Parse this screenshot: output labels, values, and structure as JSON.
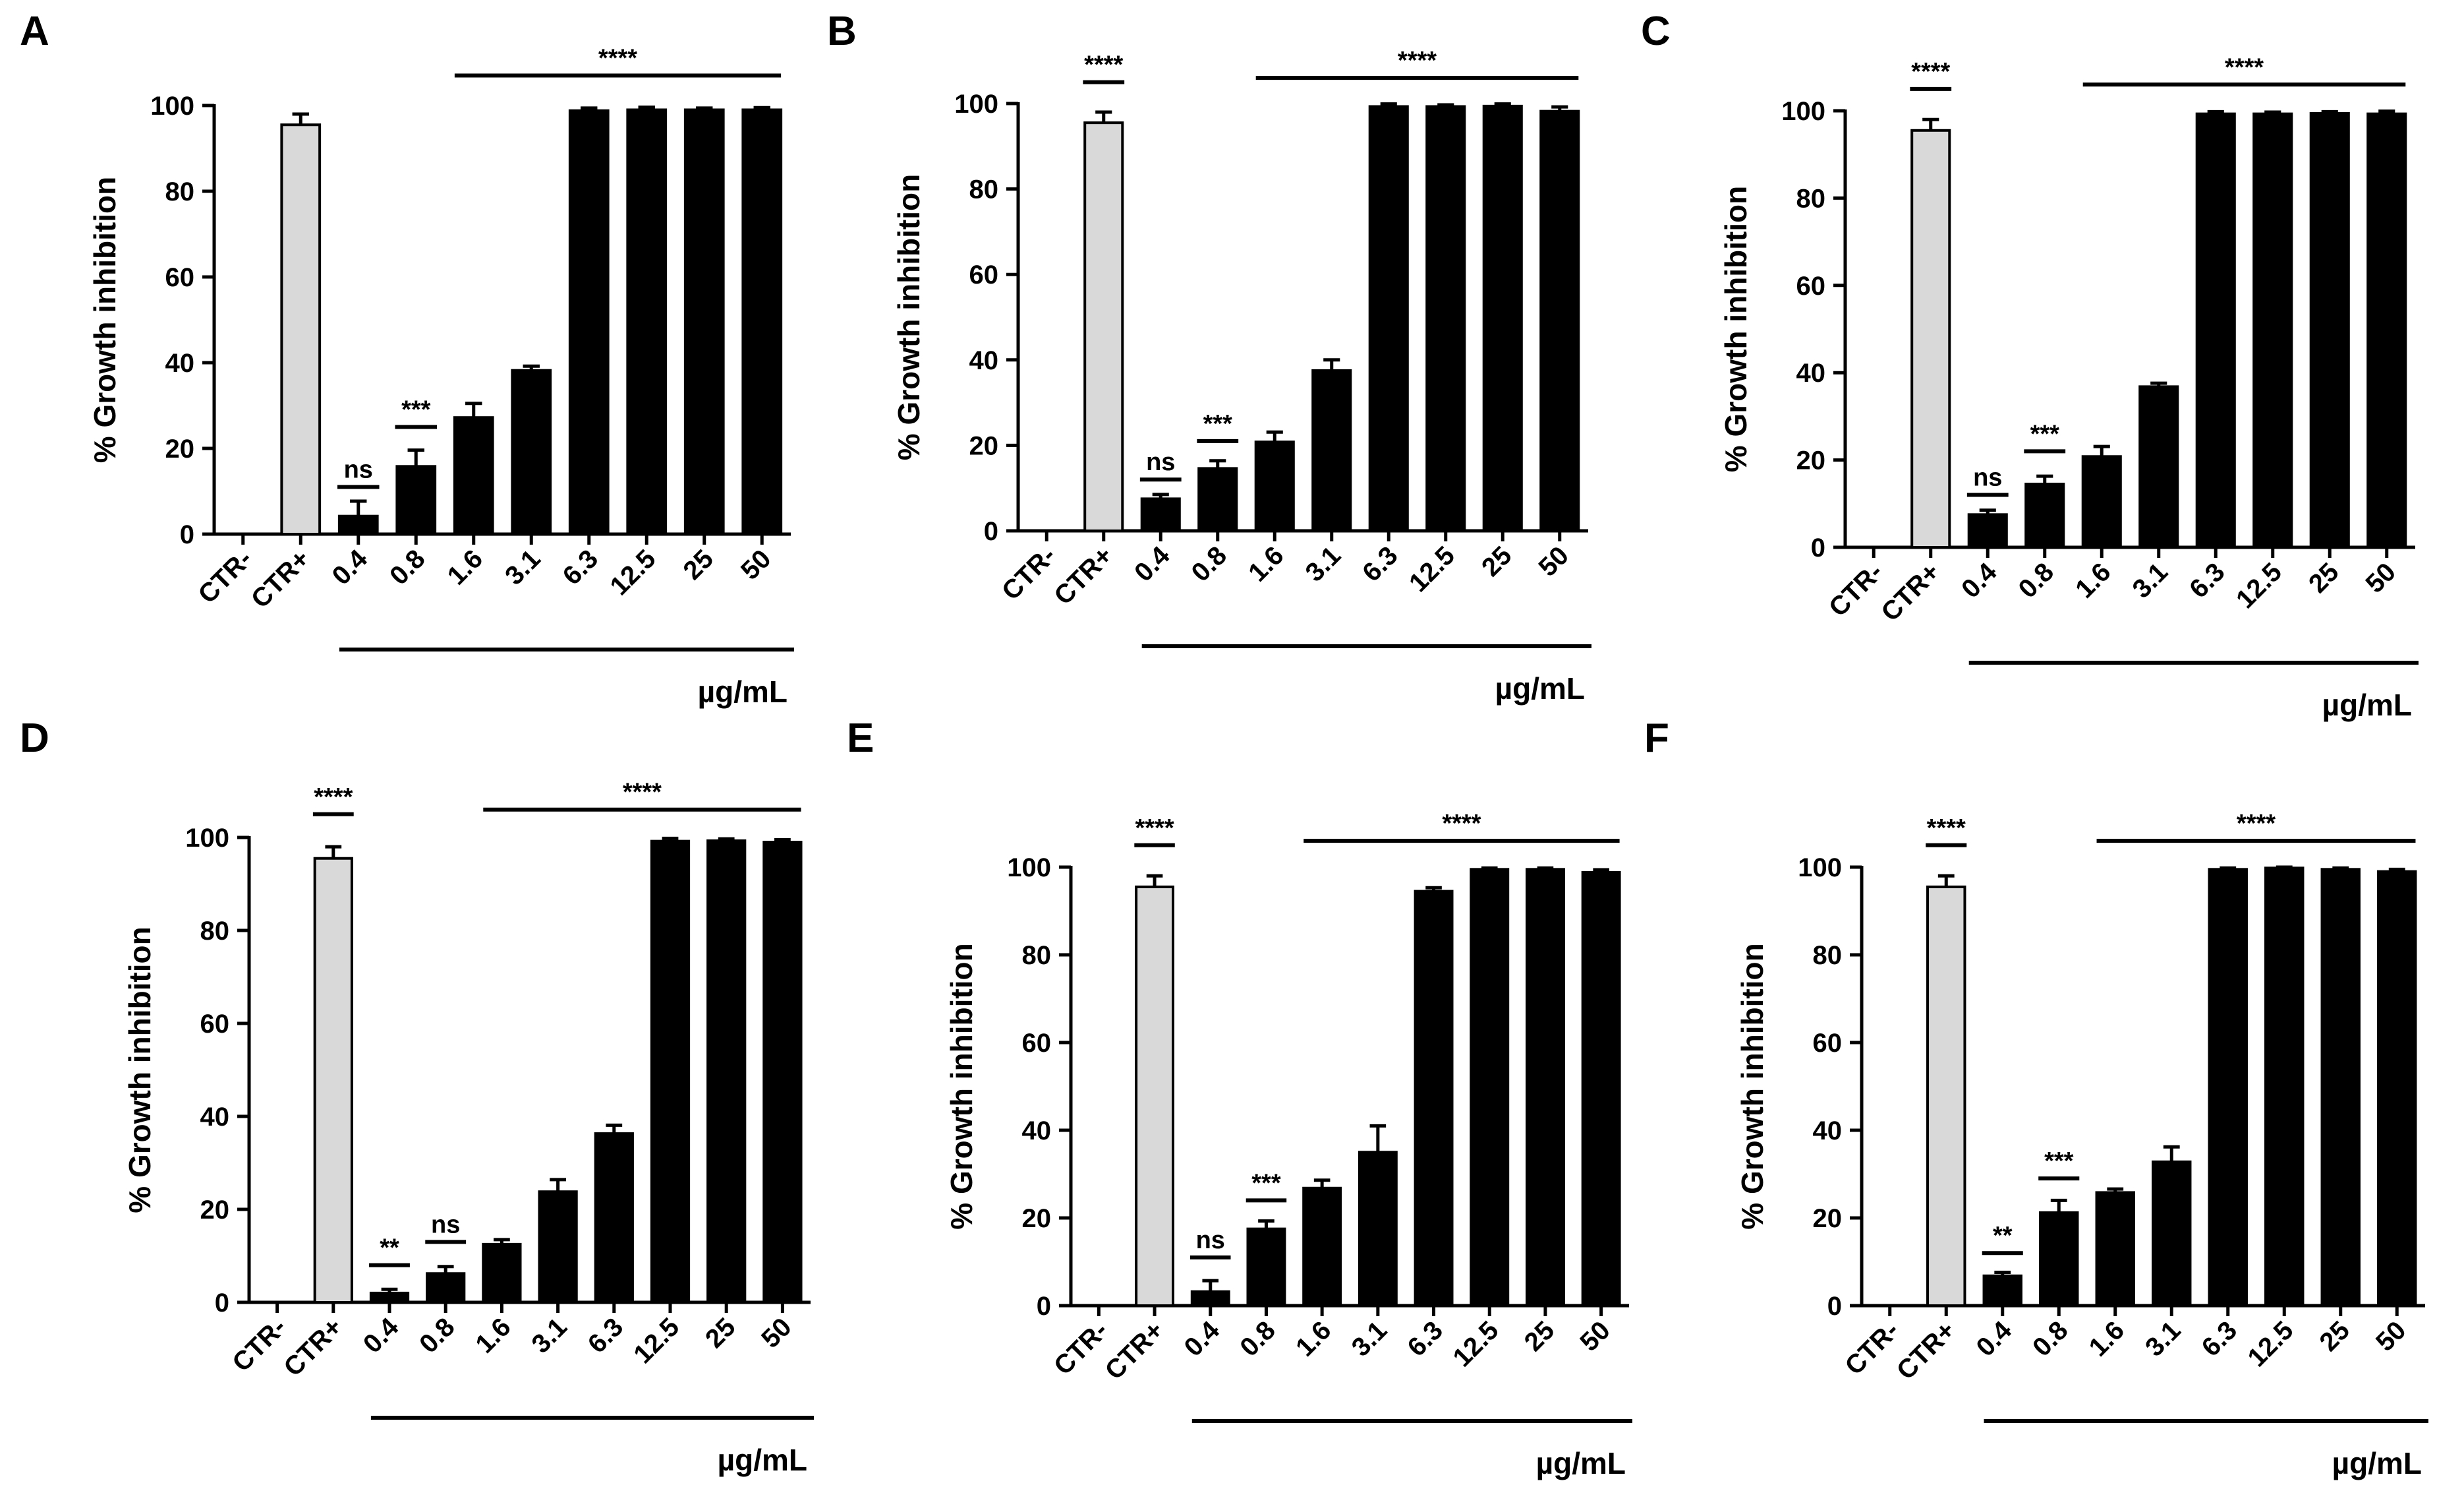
{
  "figure": {
    "ylabel": "% Growth inhibition",
    "unit_label": "µg/mL",
    "y_ticks": [
      0,
      20,
      40,
      60,
      80,
      100
    ],
    "ylim": [
      0,
      100
    ],
    "colors": {
      "control_bar": "#d9d9d9",
      "treatment_bar": "#000000",
      "axis": "#000000"
    }
  },
  "chart_data": [
    {
      "panel": "A",
      "type": "bar",
      "categories": [
        "CTR-",
        "CTR+",
        "0.4",
        "0.8",
        "1.6",
        "3.1",
        "6.3",
        "12.5",
        "25",
        "50"
      ],
      "values": [
        0,
        95.5,
        4.2,
        15.8,
        27.2,
        38.2,
        98.8,
        99.0,
        99.0,
        99.0
      ],
      "errors": [
        0,
        2.5,
        3.5,
        3.8,
        3.3,
        1.0,
        0.6,
        0.6,
        0.4,
        0.5
      ],
      "annotations": [
        {
          "label": "ns",
          "from": 2,
          "to": 2,
          "y": 11
        },
        {
          "label": "***",
          "from": 3,
          "to": 3,
          "y": 25
        },
        {
          "label": "****",
          "from": 4,
          "to": 9,
          "y": 107
        }
      ],
      "xlabel": "µg/mL",
      "ylabel": "% Growth inhibition",
      "ylim": [
        0,
        100
      ]
    },
    {
      "panel": "B",
      "type": "bar",
      "categories": [
        "CTR-",
        "CTR+",
        "0.4",
        "0.8",
        "1.6",
        "3.1",
        "6.3",
        "12.5",
        "25",
        "50"
      ],
      "values": [
        0,
        95.5,
        7.5,
        14.6,
        20.8,
        37.5,
        99.3,
        99.3,
        99.4,
        98.2
      ],
      "errors": [
        0,
        2.5,
        1.0,
        1.8,
        2.3,
        2.5,
        0.6,
        0.4,
        0.5,
        1.0
      ],
      "annotations": [
        {
          "label": "****",
          "from": 1,
          "to": 1,
          "y": 105
        },
        {
          "label": "ns",
          "from": 2,
          "to": 2,
          "y": 12
        },
        {
          "label": "***",
          "from": 3,
          "to": 3,
          "y": 21
        },
        {
          "label": "****",
          "from": 4,
          "to": 9,
          "y": 106
        }
      ],
      "xlabel": "µg/mL",
      "ylabel": "% Growth inhibition",
      "ylim": [
        0,
        100
      ]
    },
    {
      "panel": "C",
      "type": "bar",
      "categories": [
        "CTR-",
        "CTR+",
        "0.4",
        "0.8",
        "1.6",
        "3.1",
        "6.3",
        "12.5",
        "25",
        "50"
      ],
      "values": [
        0,
        95.5,
        7.5,
        14.5,
        20.8,
        36.8,
        99.3,
        99.3,
        99.4,
        99.3
      ],
      "errors": [
        0,
        2.5,
        1.0,
        1.8,
        2.3,
        0.8,
        0.5,
        0.4,
        0.4,
        0.6
      ],
      "annotations": [
        {
          "label": "****",
          "from": 1,
          "to": 1,
          "y": 105
        },
        {
          "label": "ns",
          "from": 2,
          "to": 2,
          "y": 12
        },
        {
          "label": "***",
          "from": 3,
          "to": 3,
          "y": 22
        },
        {
          "label": "****",
          "from": 4,
          "to": 9,
          "y": 106
        }
      ],
      "xlabel": "µg/mL",
      "ylabel": "% Growth inhibition",
      "ylim": [
        0,
        100
      ]
    },
    {
      "panel": "D",
      "type": "bar",
      "categories": [
        "CTR-",
        "CTR+",
        "0.4",
        "0.8",
        "1.6",
        "3.1",
        "6.3",
        "12.5",
        "25",
        "50"
      ],
      "values": [
        0,
        95.5,
        2.0,
        6.2,
        12.5,
        23.8,
        36.3,
        99.2,
        99.3,
        99.0
      ],
      "errors": [
        0,
        2.5,
        0.8,
        1.5,
        1.0,
        2.6,
        1.8,
        0.6,
        0.4,
        0.5
      ],
      "annotations": [
        {
          "label": "****",
          "from": 1,
          "to": 1,
          "y": 105
        },
        {
          "label": "**",
          "from": 2,
          "to": 2,
          "y": 8
        },
        {
          "label": "ns",
          "from": 3,
          "to": 3,
          "y": 13
        },
        {
          "label": "****",
          "from": 4,
          "to": 9,
          "y": 106
        }
      ],
      "xlabel": "µg/mL",
      "ylabel": "% Growth inhibition",
      "ylim": [
        0,
        100
      ]
    },
    {
      "panel": "E",
      "type": "bar",
      "categories": [
        "CTR-",
        "CTR+",
        "0.4",
        "0.8",
        "1.6",
        "3.1",
        "6.3",
        "12.5",
        "25",
        "50"
      ],
      "values": [
        0,
        95.5,
        3.2,
        17.5,
        26.8,
        35.0,
        94.5,
        99.5,
        99.5,
        98.8
      ],
      "errors": [
        0,
        2.5,
        2.5,
        1.8,
        1.8,
        6.0,
        0.8,
        0.3,
        0.3,
        0.6
      ],
      "annotations": [
        {
          "label": "****",
          "from": 1,
          "to": 1,
          "y": 105
        },
        {
          "label": "ns",
          "from": 2,
          "to": 2,
          "y": 11
        },
        {
          "label": "***",
          "from": 3,
          "to": 3,
          "y": 24
        },
        {
          "label": "****",
          "from": 4,
          "to": 9,
          "y": 106
        }
      ],
      "xlabel": "µg/mL",
      "ylabel": "% Growth inhibition",
      "ylim": [
        0,
        100
      ]
    },
    {
      "panel": "F",
      "type": "bar",
      "categories": [
        "CTR-",
        "CTR+",
        "0.4",
        "0.8",
        "1.6",
        "3.1",
        "6.3",
        "12.5",
        "25",
        "50"
      ],
      "values": [
        0,
        95.5,
        6.8,
        21.2,
        25.8,
        32.8,
        99.5,
        99.8,
        99.5,
        99.0
      ],
      "errors": [
        0,
        2.5,
        0.8,
        2.8,
        0.8,
        3.4,
        0.3,
        0.2,
        0.3,
        0.5
      ],
      "annotations": [
        {
          "label": "****",
          "from": 1,
          "to": 1,
          "y": 105
        },
        {
          "label": "**",
          "from": 2,
          "to": 2,
          "y": 12
        },
        {
          "label": "***",
          "from": 3,
          "to": 3,
          "y": 29
        },
        {
          "label": "****",
          "from": 4,
          "to": 9,
          "y": 106
        }
      ],
      "xlabel": "µg/mL",
      "ylabel": "% Growth inhibition",
      "ylim": [
        0,
        100
      ]
    }
  ]
}
